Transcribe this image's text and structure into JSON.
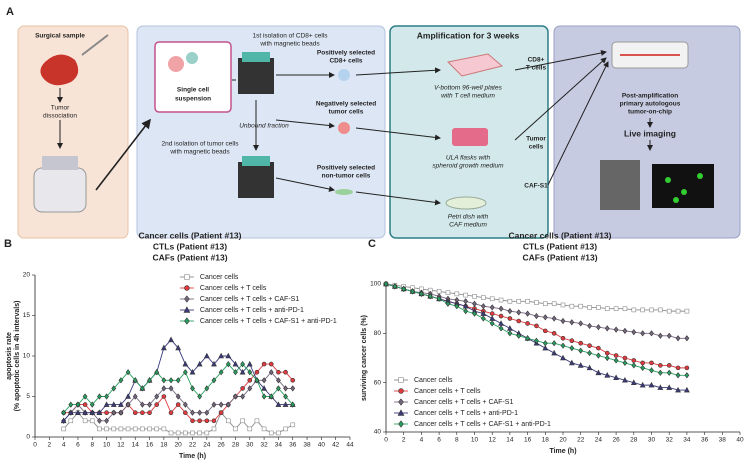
{
  "figure_a": {
    "label": "A",
    "surgical_sample": "Surgical sample",
    "tumor_dissociation": [
      "Tumor",
      "dissociation"
    ],
    "single_cell": [
      "Single cell",
      "suspension"
    ],
    "first_isolation": [
      "1st isolation of CD8+ cells",
      "with magnetic beads"
    ],
    "unbound": "Unbound fraction",
    "second_isolation": [
      "2nd isolation of tumor cells",
      "with magnetic beads"
    ],
    "cd8_selected": [
      "Positively selected",
      "CD8+ cells"
    ],
    "tumor_selected": [
      "Negatively selected",
      "tumor cells"
    ],
    "nontumor_selected": [
      "Positively selected",
      "non-tumor cells"
    ],
    "amplification": "Amplification for 3 weeks",
    "plates": [
      "V-bottom 96-well plates",
      "with T cell medium"
    ],
    "flasks": [
      "ULA flasks with",
      "spheroid growth medium"
    ],
    "petri": [
      "Petri dish with",
      "CAF medium"
    ],
    "t_cells": [
      "CD8+",
      "T cells"
    ],
    "tumor_cells": [
      "Tumor",
      "cells"
    ],
    "caf": "CAF-S1",
    "chip": [
      "Post-amplification",
      "primary autologous",
      "tumor-on-chip"
    ],
    "imaging": "Live imaging"
  },
  "chart_data": [
    {
      "type": "line",
      "panel": "B",
      "title": [
        "Cancer cells (Patient #13)",
        "CTLs (Patient #13)",
        "CAFs (Patient #13)"
      ],
      "xlabel": "Time (h)",
      "ylabel": [
        "apoptosis rate",
        "(% apoptotic cells in 4h intervals)"
      ],
      "legend": "upper right",
      "xlim": [
        0,
        44
      ],
      "xticks": [
        0,
        2,
        4,
        6,
        8,
        10,
        12,
        14,
        16,
        18,
        20,
        22,
        24,
        26,
        28,
        30,
        32,
        34,
        36,
        38,
        40,
        42,
        44
      ],
      "ylim": [
        0,
        20
      ],
      "yticks": [
        0,
        5,
        10,
        15,
        20
      ],
      "x": [
        4,
        5,
        6,
        7,
        8,
        9,
        10,
        11,
        12,
        13,
        14,
        15,
        16,
        17,
        18,
        19,
        20,
        21,
        22,
        23,
        24,
        25,
        26,
        27,
        28,
        29,
        30,
        31,
        32,
        33,
        34,
        35,
        36
      ],
      "series": [
        {
          "name": "Cancer cells",
          "color": "#8c8c8c",
          "marker": "square",
          "hollow": true,
          "values": [
            1,
            2,
            3,
            2,
            2,
            1,
            1,
            1,
            1,
            1,
            1,
            1,
            1,
            1,
            1,
            0.5,
            0.5,
            0.5,
            0.5,
            0.5,
            0.5,
            1,
            3,
            2,
            1,
            2,
            1,
            2,
            1,
            0.5,
            0.5,
            1,
            1.5
          ]
        },
        {
          "name": "Cancer cells + T cells",
          "color": "#e0393e",
          "marker": "circle",
          "hollow": false,
          "values": [
            3,
            3,
            4,
            4,
            3,
            3,
            3,
            3,
            3,
            4,
            3,
            3,
            3,
            4,
            5,
            3,
            4,
            3,
            2,
            2,
            2,
            2,
            3,
            4,
            5,
            6,
            7,
            8,
            9,
            9,
            8,
            8,
            7
          ]
        },
        {
          "name": "Cancer cells + T cells + CAF-S1",
          "color": "#76687f",
          "marker": "diamond",
          "hollow": false,
          "values": [
            2,
            3,
            4,
            3,
            3,
            2,
            2,
            3,
            3,
            4,
            5,
            4,
            4,
            5,
            6,
            6,
            5,
            4,
            3,
            3,
            3,
            4,
            4,
            4,
            5,
            5,
            6,
            7,
            7,
            8,
            7,
            6,
            6
          ]
        },
        {
          "name": "Cancer cells + T cells + anti-PD-1",
          "color": "#3a3a7c",
          "marker": "triangle",
          "hollow": false,
          "values": [
            2,
            3,
            3,
            3,
            3,
            3,
            4,
            4,
            4,
            5,
            7,
            6,
            7,
            8,
            11,
            12,
            11,
            9,
            8,
            9,
            10,
            9,
            10,
            10,
            9,
            8,
            9,
            7,
            6,
            5,
            4,
            4,
            4
          ]
        },
        {
          "name": "Cancer cells + T cells + CAF-S1 + anti-PD-1",
          "color": "#27a05f",
          "marker": "diamond",
          "hollow": false,
          "values": [
            3,
            4,
            4,
            5,
            4,
            5,
            5,
            6,
            7,
            8,
            7,
            6,
            7,
            8,
            7,
            7,
            7,
            8,
            6,
            5,
            6,
            7,
            8,
            9,
            8,
            9,
            8,
            7,
            5,
            5,
            6,
            5,
            4
          ]
        }
      ]
    },
    {
      "type": "line",
      "panel": "C",
      "title": [
        "Cancer cells (Patient #13)",
        "CTLs (Patient #13)",
        "CAFs (Patient #13)"
      ],
      "xlabel": "Time (h)",
      "ylabel": [
        "surviving cancer cells (%)"
      ],
      "legend": "lower left",
      "xlim": [
        0,
        40
      ],
      "xticks": [
        0,
        2,
        4,
        6,
        8,
        10,
        12,
        14,
        16,
        18,
        20,
        22,
        24,
        26,
        28,
        30,
        32,
        34,
        36,
        38,
        40
      ],
      "ylim": [
        40,
        100
      ],
      "yticks": [
        40,
        60,
        80,
        100
      ],
      "x": [
        0,
        1,
        2,
        3,
        4,
        5,
        6,
        7,
        8,
        9,
        10,
        11,
        12,
        13,
        14,
        15,
        16,
        17,
        18,
        19,
        20,
        21,
        22,
        23,
        24,
        25,
        26,
        27,
        28,
        29,
        30,
        31,
        32,
        33,
        34
      ],
      "series": [
        {
          "name": "Cancer cells",
          "color": "#8c8c8c",
          "marker": "square",
          "hollow": true,
          "values": [
            100,
            99.5,
            99,
            98.5,
            98,
            97.5,
            97,
            96.5,
            96,
            95.5,
            95,
            94.5,
            94,
            93.5,
            93,
            93,
            93,
            92.5,
            92,
            92,
            91.5,
            91,
            91,
            90.5,
            90.5,
            90,
            90,
            90,
            89.5,
            89.5,
            89.5,
            89.5,
            89,
            89,
            89
          ]
        },
        {
          "name": "Cancer cells + T cells",
          "color": "#e0393e",
          "marker": "circle",
          "hollow": false,
          "values": [
            100,
            99,
            98,
            97,
            96,
            95,
            94,
            93,
            92,
            91,
            90,
            89,
            88,
            87,
            86,
            85,
            84,
            83,
            81,
            80,
            78,
            77,
            76,
            75,
            74,
            72,
            71,
            70,
            69,
            68,
            68,
            67,
            67,
            66,
            66
          ]
        },
        {
          "name": "Cancer cells + T cells + CAF-S1",
          "color": "#76687f",
          "marker": "diamond",
          "hollow": false,
          "values": [
            100,
            99,
            98,
            97,
            96.5,
            96,
            95,
            94,
            93.5,
            93,
            92,
            91,
            90.5,
            90,
            89,
            88.5,
            88,
            87,
            86.5,
            86,
            85,
            84.5,
            84,
            83,
            82.5,
            82,
            81.5,
            81,
            80.5,
            80,
            80,
            79,
            79,
            78,
            78
          ]
        },
        {
          "name": "Cancer cells + T cells + anti-PD-1",
          "color": "#3a3a7c",
          "marker": "triangle",
          "hollow": false,
          "values": [
            100,
            99,
            98,
            97,
            96,
            95,
            94,
            93,
            92,
            91,
            89,
            88,
            86,
            84,
            82,
            80,
            78,
            76,
            74,
            72,
            70,
            68,
            67,
            66,
            64,
            63,
            62,
            61,
            60,
            59,
            59,
            58,
            58,
            57,
            57
          ]
        },
        {
          "name": "Cancer cells + T cells + CAF-S1 + anti-PD-1",
          "color": "#27a05f",
          "marker": "diamond",
          "hollow": false,
          "values": [
            100,
            99,
            98,
            97,
            96,
            95,
            94,
            92,
            91,
            89,
            88,
            86,
            84,
            82,
            80,
            79,
            78,
            77,
            76,
            76,
            75,
            74,
            73,
            72,
            71,
            70,
            69,
            68,
            67,
            66,
            65,
            64,
            64,
            63,
            63
          ]
        }
      ]
    }
  ]
}
